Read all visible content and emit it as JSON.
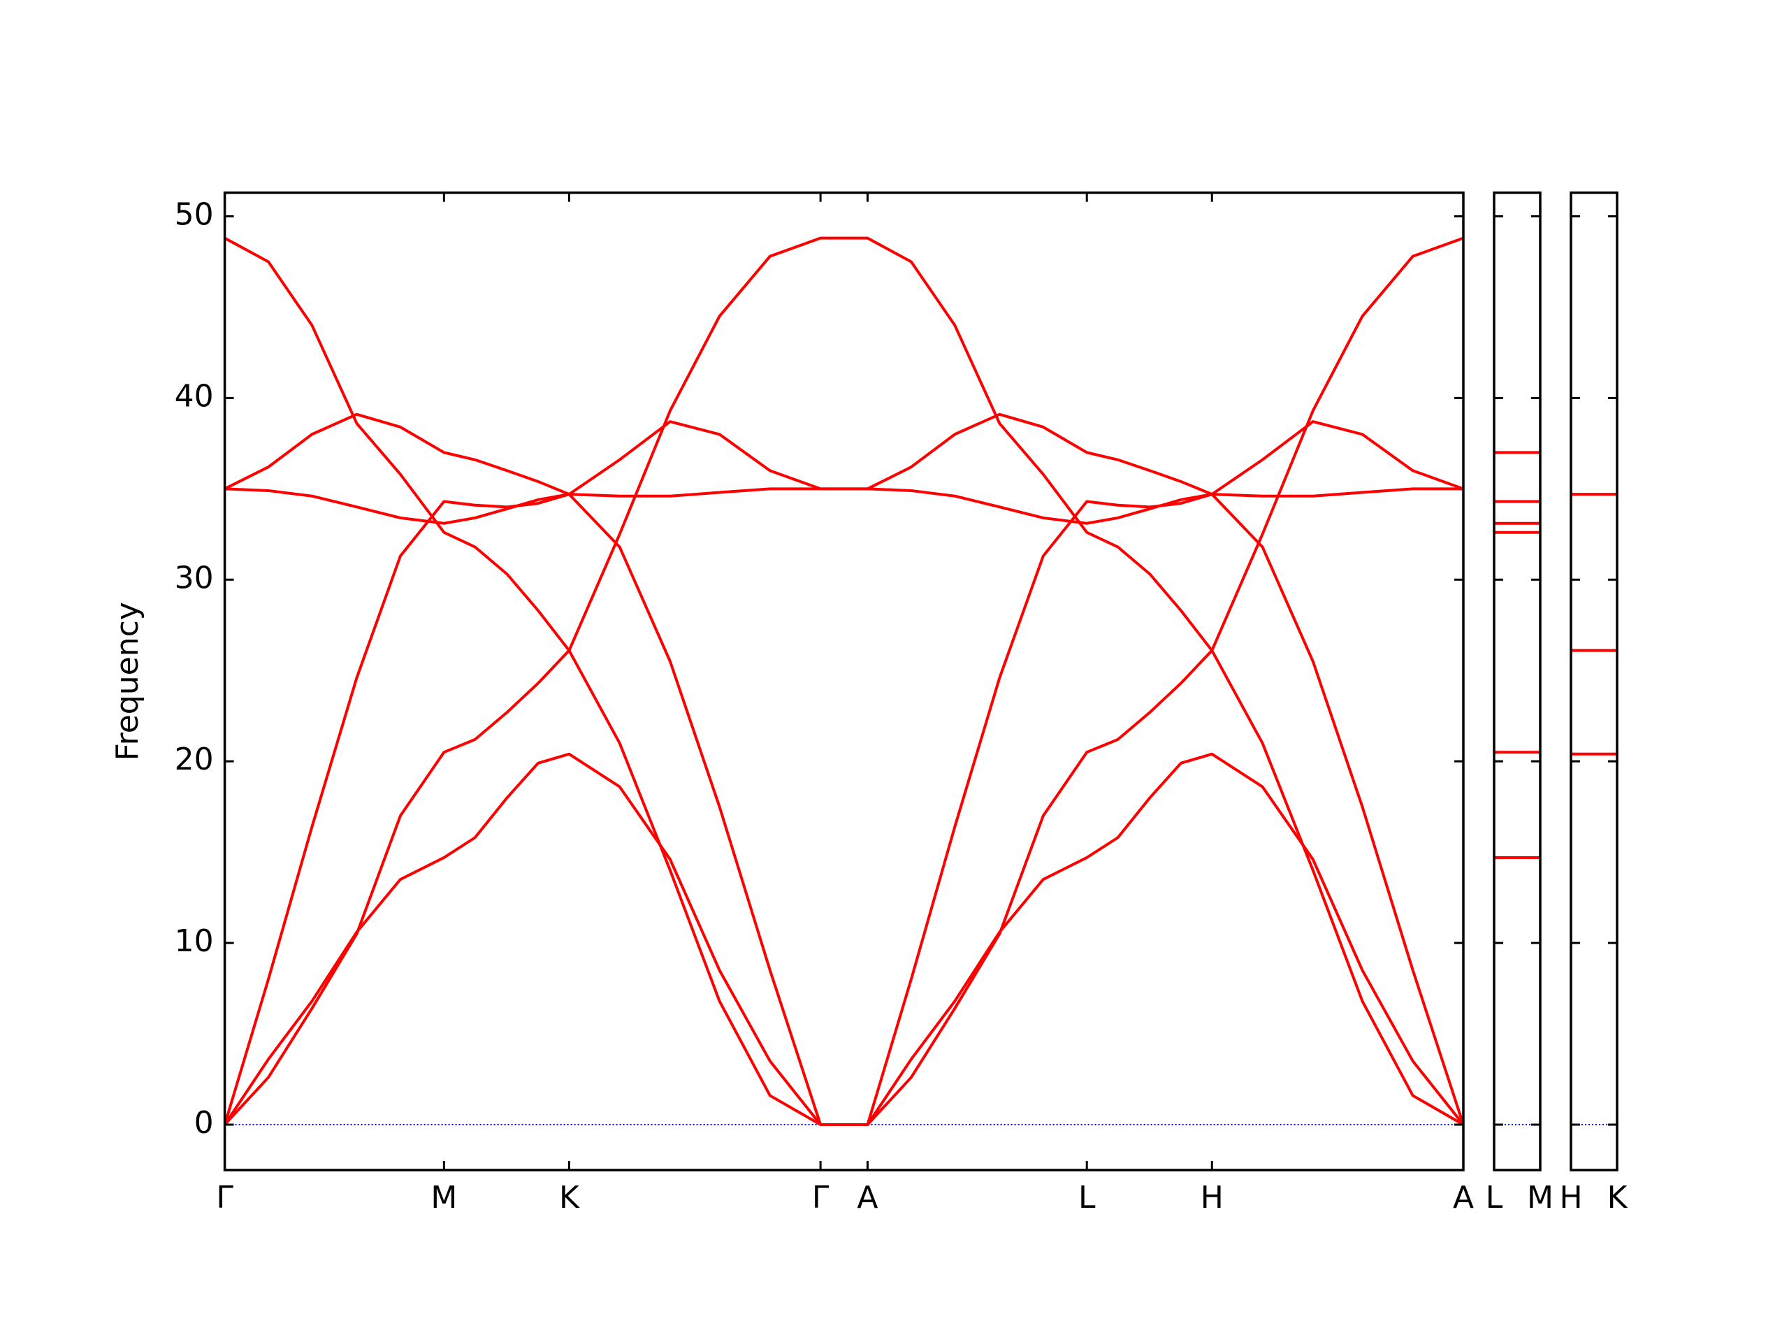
{
  "chart_data": [
    {
      "type": "line",
      "y_label": "Frequency",
      "x": [
        0,
        0.38,
        0.76,
        1.15,
        1.53,
        1.91,
        2.18,
        2.46,
        2.73,
        3.0,
        3.44,
        3.88,
        4.31,
        4.75,
        5.19,
        5.6,
        5.98,
        6.36,
        6.75,
        7.13,
        7.51,
        7.78,
        8.06,
        8.33,
        8.6,
        9.04,
        9.48,
        9.91,
        10.35,
        10.79
      ],
      "xlim": [
        0,
        10.79
      ],
      "xticks": [
        {
          "value": 0,
          "label": "Γ"
        },
        {
          "value": 1.91,
          "label": "M"
        },
        {
          "value": 3.0,
          "label": "K"
        },
        {
          "value": 5.19,
          "label": "Γ"
        },
        {
          "value": 5.6,
          "label": "A"
        },
        {
          "value": 7.51,
          "label": "L"
        },
        {
          "value": 8.6,
          "label": "H"
        },
        {
          "value": 10.79,
          "label": "A"
        }
      ],
      "ylim": [
        -2.5,
        51.3
      ],
      "yticks": [
        0,
        10,
        20,
        30,
        40,
        50
      ],
      "ytick_labels": true,
      "hline": 0,
      "hline_color": "#0000ff",
      "series": [
        {
          "color": "#ff0000",
          "values": [
            0,
            2.6,
            6.4,
            10.5,
            17.0,
            20.5,
            21.2,
            22.7,
            24.3,
            26.1,
            21.0,
            14.0,
            6.8,
            1.6,
            0,
            0,
            2.6,
            6.4,
            10.5,
            17.0,
            20.5,
            21.2,
            22.7,
            24.3,
            26.1,
            21.0,
            14.0,
            6.8,
            1.6,
            0
          ]
        },
        {
          "color": "#ff0000",
          "values": [
            0,
            3.6,
            6.8,
            10.6,
            13.5,
            14.7,
            15.8,
            18.0,
            19.9,
            20.4,
            18.6,
            14.6,
            8.5,
            3.5,
            0,
            0,
            3.6,
            6.8,
            10.6,
            13.5,
            14.7,
            15.8,
            18.0,
            19.9,
            20.4,
            18.6,
            14.6,
            8.5,
            3.5,
            0
          ]
        },
        {
          "color": "#ff0000",
          "values": [
            0,
            8.0,
            16.4,
            24.6,
            31.3,
            34.3,
            34.1,
            34.0,
            34.2,
            34.7,
            31.8,
            25.5,
            17.5,
            8.5,
            0,
            0,
            8.0,
            16.4,
            24.6,
            31.3,
            34.3,
            34.1,
            34.0,
            34.2,
            34.7,
            31.8,
            25.5,
            17.5,
            8.5,
            0
          ]
        },
        {
          "color": "#ff0000",
          "values": [
            48.8,
            47.5,
            44.0,
            38.6,
            35.8,
            32.6,
            31.8,
            30.3,
            28.3,
            26.1,
            32.5,
            39.3,
            44.5,
            47.8,
            48.8,
            48.8,
            47.5,
            44.0,
            38.6,
            35.8,
            32.6,
            31.8,
            30.3,
            28.3,
            26.1,
            32.5,
            39.3,
            44.5,
            47.8,
            48.8
          ]
        },
        {
          "color": "#ff0000",
          "values": [
            35,
            36.2,
            38.0,
            39.1,
            38.4,
            37.0,
            36.6,
            36.0,
            35.4,
            34.7,
            36.6,
            38.7,
            38.0,
            36.0,
            35,
            35,
            36.2,
            38.0,
            39.1,
            38.4,
            37.0,
            36.6,
            36.0,
            35.4,
            34.7,
            36.6,
            38.7,
            38.0,
            36.0,
            35
          ]
        },
        {
          "color": "#ff0000",
          "values": [
            35,
            34.9,
            34.6,
            34.0,
            33.4,
            33.1,
            33.4,
            33.9,
            34.4,
            34.7,
            34.6,
            34.6,
            34.8,
            35,
            35,
            35,
            34.9,
            34.6,
            34.0,
            33.4,
            33.1,
            33.4,
            33.9,
            34.4,
            34.7,
            34.6,
            34.6,
            34.8,
            35,
            35
          ]
        }
      ]
    },
    {
      "type": "line",
      "x": [
        0,
        0.4
      ],
      "xlim": [
        0,
        0.4
      ],
      "xticks": [
        {
          "value": 0,
          "label": "L"
        },
        {
          "value": 0.4,
          "label": "M"
        }
      ],
      "ylim": [
        -2.5,
        51.3
      ],
      "yticks": [
        0,
        10,
        20,
        30,
        40,
        50
      ],
      "ytick_labels": false,
      "hline": 0,
      "hline_color": "#0000ff",
      "series": [
        {
          "color": "#ff0000",
          "values": [
            37.0,
            37.0
          ]
        },
        {
          "color": "#ff0000",
          "values": [
            34.3,
            34.3
          ]
        },
        {
          "color": "#ff0000",
          "values": [
            33.1,
            33.1
          ]
        },
        {
          "color": "#ff0000",
          "values": [
            32.6,
            32.6
          ]
        },
        {
          "color": "#ff0000",
          "values": [
            20.5,
            20.5
          ]
        },
        {
          "color": "#ff0000",
          "values": [
            14.7,
            14.7
          ]
        }
      ]
    },
    {
      "type": "line",
      "x": [
        0,
        0.4
      ],
      "xlim": [
        0,
        0.4
      ],
      "xticks": [
        {
          "value": 0,
          "label": "H"
        },
        {
          "value": 0.4,
          "label": "K"
        }
      ],
      "ylim": [
        -2.5,
        51.3
      ],
      "yticks": [
        0,
        10,
        20,
        30,
        40,
        50
      ],
      "ytick_labels": false,
      "hline": 0,
      "hline_color": "#0000ff",
      "series": [
        {
          "color": "#ff0000",
          "values": [
            34.7,
            34.7
          ]
        },
        {
          "color": "#ff0000",
          "values": [
            26.1,
            26.1
          ]
        },
        {
          "color": "#ff0000",
          "values": [
            20.4,
            20.4
          ]
        }
      ]
    }
  ]
}
